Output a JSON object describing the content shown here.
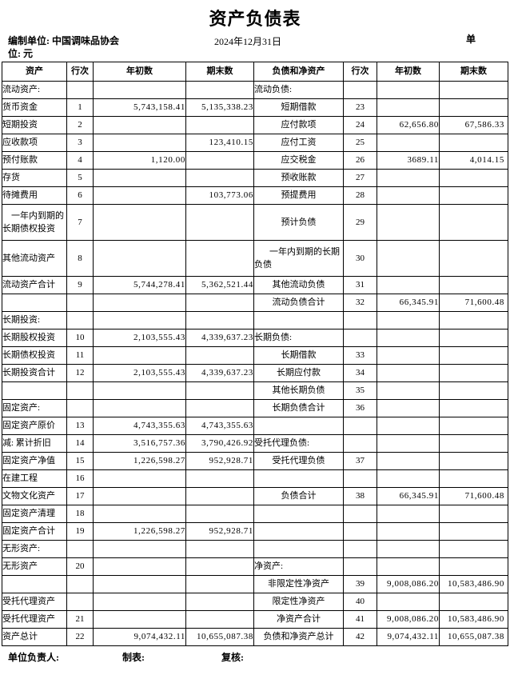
{
  "title": "资产负债表",
  "header": {
    "org": "编制单位: 中国调味品协会",
    "date": "2024年12月31日",
    "unit_wrap_top": "单",
    "unit_wrap_bottom": "位: 元"
  },
  "columns": [
    "资产",
    "行次",
    "年初数",
    "期末数",
    "负债和净资产",
    "行次",
    "年初数",
    "期末数"
  ],
  "rows": [
    {
      "tall": false,
      "left": {
        "label": "流动资产:",
        "style": "section",
        "line": "",
        "begin": "",
        "end": ""
      },
      "right": {
        "label": "流动负债:",
        "style": "section",
        "line": "",
        "begin": "",
        "end": ""
      }
    },
    {
      "tall": false,
      "left": {
        "label": "货币资金",
        "style": "item",
        "line": "1",
        "begin": "5,743,158.41",
        "end": "5,135,338.23"
      },
      "right": {
        "label": "短期借款",
        "style": "item",
        "line": "23",
        "begin": "",
        "end": ""
      }
    },
    {
      "tall": false,
      "left": {
        "label": "短期投资",
        "style": "item",
        "line": "2",
        "begin": "",
        "end": ""
      },
      "right": {
        "label": "应付款项",
        "style": "item",
        "line": "24",
        "begin": "62,656.80",
        "end": "67,586.33"
      }
    },
    {
      "tall": false,
      "left": {
        "label": "应收款项",
        "style": "item",
        "line": "3",
        "begin": "",
        "end": "123,410.15"
      },
      "right": {
        "label": "应付工资",
        "style": "item",
        "line": "25",
        "begin": "",
        "end": ""
      }
    },
    {
      "tall": false,
      "left": {
        "label": "预付账款",
        "style": "item",
        "line": "4",
        "begin": "1,120.00",
        "end": ""
      },
      "right": {
        "label": "应交税金",
        "style": "item",
        "line": "26",
        "begin": "3689.11",
        "end": "4,014.15"
      }
    },
    {
      "tall": false,
      "left": {
        "label": "存货",
        "style": "item",
        "line": "5",
        "begin": "",
        "end": ""
      },
      "right": {
        "label": "预收账款",
        "style": "item",
        "line": "27",
        "begin": "",
        "end": ""
      }
    },
    {
      "tall": false,
      "left": {
        "label": "待摊费用",
        "style": "item",
        "line": "6",
        "begin": "",
        "end": "103,773.06"
      },
      "right": {
        "label": "预提费用",
        "style": "item",
        "line": "28",
        "begin": "",
        "end": ""
      }
    },
    {
      "tall": true,
      "left": {
        "label": "一年内到期的长期债权投资",
        "style": "wrap",
        "line": "7",
        "begin": "",
        "end": ""
      },
      "right": {
        "label": "预计负债",
        "style": "item",
        "line": "29",
        "begin": "",
        "end": ""
      }
    },
    {
      "tall": true,
      "left": {
        "label": "其他流动资产",
        "style": "item",
        "line": "8",
        "begin": "",
        "end": ""
      },
      "right": {
        "label": "一年内到期的长期负债",
        "style": "wrap",
        "line": "30",
        "begin": "",
        "end": ""
      }
    },
    {
      "tall": false,
      "left": {
        "label": "流动资产合计",
        "style": "item",
        "line": "9",
        "begin": "5,744,278.41",
        "end": "5,362,521.44"
      },
      "right": {
        "label": "其他流动负债",
        "style": "item",
        "line": "31",
        "begin": "",
        "end": ""
      }
    },
    {
      "tall": false,
      "left": {
        "label": "",
        "style": "",
        "line": "",
        "begin": "",
        "end": ""
      },
      "right": {
        "label": "流动负债合计",
        "style": "item",
        "line": "32",
        "begin": "66,345.91",
        "end": "71,600.48"
      }
    },
    {
      "tall": false,
      "left": {
        "label": "长期投资:",
        "style": "section",
        "line": "",
        "begin": "",
        "end": ""
      },
      "right": {
        "label": "",
        "style": "",
        "line": "",
        "begin": "",
        "end": ""
      }
    },
    {
      "tall": false,
      "left": {
        "label": "长期股权投资",
        "style": "item",
        "line": "10",
        "begin": "2,103,555.43",
        "end": "4,339,637.23"
      },
      "right": {
        "label": "长期负债:",
        "style": "section",
        "line": "",
        "begin": "",
        "end": ""
      }
    },
    {
      "tall": false,
      "left": {
        "label": "长期债权投资",
        "style": "item",
        "line": "11",
        "begin": "",
        "end": ""
      },
      "right": {
        "label": "长期借款",
        "style": "item",
        "line": "33",
        "begin": "",
        "end": ""
      }
    },
    {
      "tall": false,
      "left": {
        "label": "长期投资合计",
        "style": "item",
        "line": "12",
        "begin": "2,103,555.43",
        "end": "4,339,637.23"
      },
      "right": {
        "label": "长期应付款",
        "style": "item",
        "line": "34",
        "begin": "",
        "end": ""
      }
    },
    {
      "tall": false,
      "left": {
        "label": "",
        "style": "",
        "line": "",
        "begin": "",
        "end": ""
      },
      "right": {
        "label": "其他长期负债",
        "style": "item",
        "line": "35",
        "begin": "",
        "end": ""
      }
    },
    {
      "tall": false,
      "left": {
        "label": "固定资产:",
        "style": "section",
        "line": "",
        "begin": "",
        "end": ""
      },
      "right": {
        "label": "长期负债合计",
        "style": "item",
        "line": "36",
        "begin": "",
        "end": ""
      }
    },
    {
      "tall": false,
      "left": {
        "label": "固定资产原价",
        "style": "item",
        "line": "13",
        "begin": "4,743,355.63",
        "end": "4,743,355.63"
      },
      "right": {
        "label": "",
        "style": "",
        "line": "",
        "begin": "",
        "end": ""
      }
    },
    {
      "tall": false,
      "left": {
        "label": "减: 累计折旧",
        "style": "item",
        "line": "14",
        "begin": "3,516,757.36",
        "end": "3,790,426.92"
      },
      "right": {
        "label": "受托代理负债:",
        "style": "section",
        "line": "",
        "begin": "",
        "end": ""
      }
    },
    {
      "tall": false,
      "left": {
        "label": "固定资产净值",
        "style": "item",
        "line": "15",
        "begin": "1,226,598.27",
        "end": "952,928.71"
      },
      "right": {
        "label": "受托代理负债",
        "style": "item",
        "line": "37",
        "begin": "",
        "end": ""
      }
    },
    {
      "tall": false,
      "left": {
        "label": "在建工程",
        "style": "item",
        "line": "16",
        "begin": "",
        "end": ""
      },
      "right": {
        "label": "",
        "style": "",
        "line": "",
        "begin": "",
        "end": ""
      }
    },
    {
      "tall": false,
      "left": {
        "label": "文物文化资产",
        "style": "item",
        "line": "17",
        "begin": "",
        "end": ""
      },
      "right": {
        "label": "负债合计",
        "style": "item",
        "line": "38",
        "begin": "66,345.91",
        "end": "71,600.48"
      }
    },
    {
      "tall": false,
      "left": {
        "label": "固定资产清理",
        "style": "item",
        "line": "18",
        "begin": "",
        "end": ""
      },
      "right": {
        "label": "",
        "style": "",
        "line": "",
        "begin": "",
        "end": ""
      }
    },
    {
      "tall": false,
      "left": {
        "label": "固定资产合计",
        "style": "item",
        "line": "19",
        "begin": "1,226,598.27",
        "end": "952,928.71"
      },
      "right": {
        "label": "",
        "style": "",
        "line": "",
        "begin": "",
        "end": ""
      }
    },
    {
      "tall": false,
      "left": {
        "label": "无形资产:",
        "style": "section",
        "line": "",
        "begin": "",
        "end": ""
      },
      "right": {
        "label": "",
        "style": "",
        "line": "",
        "begin": "",
        "end": ""
      }
    },
    {
      "tall": false,
      "left": {
        "label": "无形资产",
        "style": "item",
        "line": "20",
        "begin": "",
        "end": ""
      },
      "right": {
        "label": "净资产:",
        "style": "section",
        "line": "",
        "begin": "",
        "end": ""
      }
    },
    {
      "tall": false,
      "left": {
        "label": "",
        "style": "",
        "line": "",
        "begin": "",
        "end": ""
      },
      "right": {
        "label": "非限定性净资产",
        "style": "item",
        "line": "39",
        "begin": "9,008,086.20",
        "end": "10,583,486.90"
      }
    },
    {
      "tall": false,
      "left": {
        "label": "受托代理资产",
        "style": "section",
        "line": "",
        "begin": "",
        "end": ""
      },
      "right": {
        "label": "限定性净资产",
        "style": "item",
        "line": "40",
        "begin": "",
        "end": ""
      }
    },
    {
      "tall": false,
      "left": {
        "label": "受托代理资产",
        "style": "item",
        "line": "21",
        "begin": "",
        "end": ""
      },
      "right": {
        "label": "净资产合计",
        "style": "item",
        "line": "41",
        "begin": "9,008,086.20",
        "end": "10,583,486.90"
      }
    },
    {
      "tall": false,
      "left": {
        "label": "资产总计",
        "style": "total",
        "line": "22",
        "begin": "9,074,432.11",
        "end": "10,655,087.38"
      },
      "right": {
        "label": "负债和净资产总计",
        "style": "item",
        "line": "42",
        "begin": "9,074,432.11",
        "end": "10,655,087.38"
      }
    }
  ],
  "footer": {
    "responsible": "单位负责人:",
    "preparer": "制表:",
    "reviewer": "复核:"
  }
}
